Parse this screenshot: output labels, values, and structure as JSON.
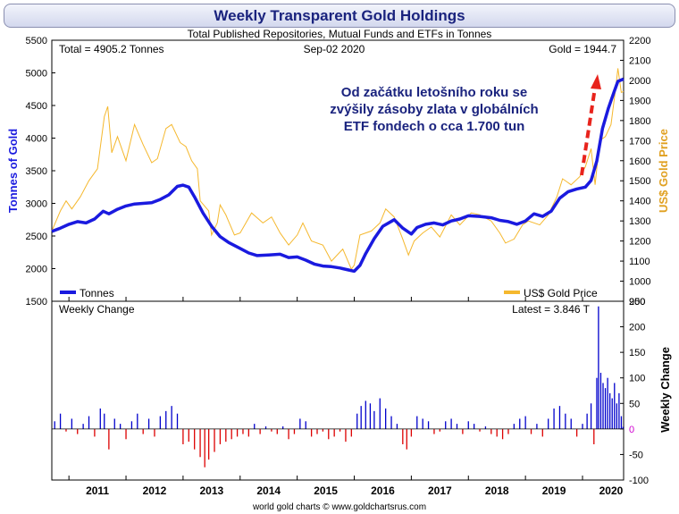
{
  "chart_data": {
    "type": "line",
    "title": "Weekly Transparent Gold Holdings",
    "subtitle": "Total Published Repositories, Mutual Funds and ETFs in Tonnes",
    "top_left_label": "Total = 4905.2 Tonnes",
    "top_center_label": "Sep-02  2020",
    "top_right_label": "Gold = 1944.7",
    "annotation": [
      "Od začátku letošního roku se",
      "zvýšily zásoby zlata v globálních",
      "ETF fondech o cca 1.700 tun"
    ],
    "left_axis_label": "Tonnes of Gold",
    "right_axis_label": "US$ Gold Price",
    "lower_axis_label": "Weekly Change",
    "lower_panel_title": "Weekly Change",
    "lower_panel_latest": "Latest = 3.846 T",
    "source": "world gold charts © www.goldchartsrus.com",
    "x_range": [
      2010.7,
      2020.72
    ],
    "x_tick_labels": [
      "2011",
      "2012",
      "2013",
      "2014",
      "2015",
      "2016",
      "2017",
      "2018",
      "2019",
      "2020"
    ],
    "left_ylim": [
      1500,
      5500
    ],
    "left_ticks": [
      "1500",
      "2000",
      "2500",
      "3000",
      "3500",
      "4000",
      "4500",
      "5000",
      "5500"
    ],
    "right_ylim": [
      900,
      2200
    ],
    "right_ticks": [
      "900",
      "1000",
      "1100",
      "1200",
      "1300",
      "1400",
      "1500",
      "1600",
      "1700",
      "1800",
      "1900",
      "2000",
      "2100",
      "2200"
    ],
    "lower_ylim": [
      -100,
      250
    ],
    "lower_ticks": [
      "-100",
      "-50",
      "0",
      "50",
      "100",
      "150",
      "200",
      "250"
    ],
    "legend": {
      "tonnes": "Tonnes",
      "gold": "US$ Gold Price"
    },
    "colors": {
      "tonnes": "#1a1adf",
      "gold": "#f5b82e",
      "positive": "#0000cc",
      "negative": "#dd0000",
      "arrow": "#e8231c",
      "title": "#1a237e",
      "left_axis": "#1a1adf",
      "right_axis": "#e0a020",
      "zero_label": "#d000d0"
    },
    "series": [
      {
        "name": "Tonnes",
        "axis": "left",
        "points": [
          [
            2010.7,
            2570
          ],
          [
            2010.85,
            2620
          ],
          [
            2011.0,
            2680
          ],
          [
            2011.15,
            2720
          ],
          [
            2011.3,
            2700
          ],
          [
            2011.45,
            2760
          ],
          [
            2011.6,
            2880
          ],
          [
            2011.7,
            2840
          ],
          [
            2011.85,
            2910
          ],
          [
            2012.0,
            2960
          ],
          [
            2012.15,
            2990
          ],
          [
            2012.3,
            3000
          ],
          [
            2012.45,
            3010
          ],
          [
            2012.6,
            3060
          ],
          [
            2012.75,
            3130
          ],
          [
            2012.9,
            3260
          ],
          [
            2013.0,
            3280
          ],
          [
            2013.1,
            3250
          ],
          [
            2013.2,
            3100
          ],
          [
            2013.35,
            2850
          ],
          [
            2013.5,
            2650
          ],
          [
            2013.65,
            2490
          ],
          [
            2013.8,
            2400
          ],
          [
            2014.0,
            2310
          ],
          [
            2014.15,
            2240
          ],
          [
            2014.3,
            2200
          ],
          [
            2014.5,
            2210
          ],
          [
            2014.7,
            2220
          ],
          [
            2014.85,
            2170
          ],
          [
            2015.0,
            2180
          ],
          [
            2015.15,
            2130
          ],
          [
            2015.3,
            2070
          ],
          [
            2015.45,
            2040
          ],
          [
            2015.6,
            2030
          ],
          [
            2015.75,
            2010
          ],
          [
            2015.9,
            1980
          ],
          [
            2016.0,
            1960
          ],
          [
            2016.1,
            2050
          ],
          [
            2016.2,
            2230
          ],
          [
            2016.35,
            2460
          ],
          [
            2016.5,
            2650
          ],
          [
            2016.7,
            2750
          ],
          [
            2016.85,
            2620
          ],
          [
            2017.0,
            2530
          ],
          [
            2017.1,
            2630
          ],
          [
            2017.25,
            2680
          ],
          [
            2017.4,
            2700
          ],
          [
            2017.55,
            2670
          ],
          [
            2017.7,
            2730
          ],
          [
            2017.85,
            2760
          ],
          [
            2018.0,
            2810
          ],
          [
            2018.2,
            2800
          ],
          [
            2018.4,
            2780
          ],
          [
            2018.55,
            2740
          ],
          [
            2018.7,
            2720
          ],
          [
            2018.85,
            2680
          ],
          [
            2019.0,
            2730
          ],
          [
            2019.15,
            2840
          ],
          [
            2019.3,
            2800
          ],
          [
            2019.45,
            2880
          ],
          [
            2019.6,
            3080
          ],
          [
            2019.75,
            3180
          ],
          [
            2019.9,
            3220
          ],
          [
            2020.05,
            3250
          ],
          [
            2020.15,
            3350
          ],
          [
            2020.25,
            3650
          ],
          [
            2020.35,
            4150
          ],
          [
            2020.45,
            4450
          ],
          [
            2020.55,
            4700
          ],
          [
            2020.62,
            4870
          ],
          [
            2020.72,
            4905
          ]
        ]
      },
      {
        "name": "US$ Gold Price",
        "axis": "right",
        "points": [
          [
            2010.7,
            1250
          ],
          [
            2010.85,
            1350
          ],
          [
            2010.95,
            1400
          ],
          [
            2011.05,
            1360
          ],
          [
            2011.2,
            1420
          ],
          [
            2011.35,
            1500
          ],
          [
            2011.5,
            1560
          ],
          [
            2011.62,
            1820
          ],
          [
            2011.68,
            1870
          ],
          [
            2011.75,
            1640
          ],
          [
            2011.85,
            1720
          ],
          [
            2012.0,
            1600
          ],
          [
            2012.1,
            1720
          ],
          [
            2012.15,
            1780
          ],
          [
            2012.3,
            1680
          ],
          [
            2012.45,
            1590
          ],
          [
            2012.55,
            1610
          ],
          [
            2012.7,
            1760
          ],
          [
            2012.8,
            1780
          ],
          [
            2012.95,
            1690
          ],
          [
            2013.05,
            1670
          ],
          [
            2013.15,
            1600
          ],
          [
            2013.25,
            1560
          ],
          [
            2013.3,
            1400
          ],
          [
            2013.45,
            1350
          ],
          [
            2013.5,
            1230
          ],
          [
            2013.6,
            1290
          ],
          [
            2013.65,
            1380
          ],
          [
            2013.75,
            1330
          ],
          [
            2013.9,
            1230
          ],
          [
            2014.0,
            1240
          ],
          [
            2014.2,
            1340
          ],
          [
            2014.4,
            1290
          ],
          [
            2014.55,
            1320
          ],
          [
            2014.7,
            1240
          ],
          [
            2014.85,
            1180
          ],
          [
            2015.0,
            1230
          ],
          [
            2015.1,
            1290
          ],
          [
            2015.25,
            1200
          ],
          [
            2015.45,
            1180
          ],
          [
            2015.6,
            1100
          ],
          [
            2015.8,
            1160
          ],
          [
            2015.95,
            1060
          ],
          [
            2016.0,
            1080
          ],
          [
            2016.1,
            1230
          ],
          [
            2016.3,
            1250
          ],
          [
            2016.45,
            1290
          ],
          [
            2016.55,
            1360
          ],
          [
            2016.7,
            1320
          ],
          [
            2016.85,
            1210
          ],
          [
            2016.95,
            1130
          ],
          [
            2017.05,
            1200
          ],
          [
            2017.2,
            1240
          ],
          [
            2017.35,
            1270
          ],
          [
            2017.5,
            1220
          ],
          [
            2017.7,
            1330
          ],
          [
            2017.85,
            1280
          ],
          [
            2018.05,
            1340
          ],
          [
            2018.2,
            1330
          ],
          [
            2018.4,
            1300
          ],
          [
            2018.55,
            1240
          ],
          [
            2018.65,
            1190
          ],
          [
            2018.8,
            1210
          ],
          [
            2018.95,
            1280
          ],
          [
            2019.05,
            1300
          ],
          [
            2019.25,
            1280
          ],
          [
            2019.4,
            1330
          ],
          [
            2019.55,
            1420
          ],
          [
            2019.65,
            1510
          ],
          [
            2019.8,
            1480
          ],
          [
            2019.95,
            1520
          ],
          [
            2020.05,
            1570
          ],
          [
            2020.15,
            1660
          ],
          [
            2020.22,
            1480
          ],
          [
            2020.3,
            1700
          ],
          [
            2020.4,
            1720
          ],
          [
            2020.5,
            1780
          ],
          [
            2020.58,
            1960
          ],
          [
            2020.62,
            2060
          ],
          [
            2020.68,
            1940
          ],
          [
            2020.72,
            1945
          ]
        ]
      }
    ],
    "weekly_change": [
      [
        2010.75,
        15
      ],
      [
        2010.85,
        30
      ],
      [
        2010.95,
        -5
      ],
      [
        2011.05,
        20
      ],
      [
        2011.15,
        -10
      ],
      [
        2011.25,
        10
      ],
      [
        2011.35,
        25
      ],
      [
        2011.45,
        -15
      ],
      [
        2011.55,
        40
      ],
      [
        2011.62,
        30
      ],
      [
        2011.7,
        -40
      ],
      [
        2011.8,
        20
      ],
      [
        2011.9,
        10
      ],
      [
        2012.0,
        -20
      ],
      [
        2012.1,
        15
      ],
      [
        2012.2,
        30
      ],
      [
        2012.3,
        -10
      ],
      [
        2012.4,
        20
      ],
      [
        2012.5,
        -15
      ],
      [
        2012.6,
        25
      ],
      [
        2012.7,
        35
      ],
      [
        2012.8,
        45
      ],
      [
        2012.9,
        30
      ],
      [
        2013.0,
        -30
      ],
      [
        2013.1,
        -25
      ],
      [
        2013.2,
        -40
      ],
      [
        2013.3,
        -55
      ],
      [
        2013.38,
        -75
      ],
      [
        2013.45,
        -60
      ],
      [
        2013.55,
        -45
      ],
      [
        2013.65,
        -30
      ],
      [
        2013.75,
        -25
      ],
      [
        2013.85,
        -20
      ],
      [
        2013.95,
        -15
      ],
      [
        2014.05,
        -10
      ],
      [
        2014.15,
        -15
      ],
      [
        2014.25,
        10
      ],
      [
        2014.35,
        -10
      ],
      [
        2014.45,
        5
      ],
      [
        2014.55,
        -5
      ],
      [
        2014.65,
        -10
      ],
      [
        2014.75,
        5
      ],
      [
        2014.85,
        -20
      ],
      [
        2014.95,
        -10
      ],
      [
        2015.05,
        20
      ],
      [
        2015.15,
        15
      ],
      [
        2015.25,
        -15
      ],
      [
        2015.35,
        -10
      ],
      [
        2015.45,
        -5
      ],
      [
        2015.55,
        -20
      ],
      [
        2015.65,
        -15
      ],
      [
        2015.75,
        -5
      ],
      [
        2015.85,
        -25
      ],
      [
        2015.95,
        -15
      ],
      [
        2016.05,
        30
      ],
      [
        2016.12,
        45
      ],
      [
        2016.2,
        55
      ],
      [
        2016.28,
        50
      ],
      [
        2016.35,
        35
      ],
      [
        2016.45,
        60
      ],
      [
        2016.55,
        40
      ],
      [
        2016.65,
        25
      ],
      [
        2016.75,
        10
      ],
      [
        2016.85,
        -30
      ],
      [
        2016.92,
        -40
      ],
      [
        2017.0,
        -15
      ],
      [
        2017.1,
        25
      ],
      [
        2017.2,
        20
      ],
      [
        2017.3,
        15
      ],
      [
        2017.4,
        -10
      ],
      [
        2017.5,
        -5
      ],
      [
        2017.6,
        15
      ],
      [
        2017.7,
        20
      ],
      [
        2017.8,
        10
      ],
      [
        2017.9,
        -10
      ],
      [
        2018.0,
        15
      ],
      [
        2018.1,
        10
      ],
      [
        2018.2,
        -5
      ],
      [
        2018.3,
        5
      ],
      [
        2018.4,
        -10
      ],
      [
        2018.5,
        -15
      ],
      [
        2018.6,
        -20
      ],
      [
        2018.7,
        -10
      ],
      [
        2018.8,
        10
      ],
      [
        2018.9,
        20
      ],
      [
        2019.0,
        25
      ],
      [
        2019.1,
        -10
      ],
      [
        2019.2,
        10
      ],
      [
        2019.3,
        -15
      ],
      [
        2019.4,
        20
      ],
      [
        2019.5,
        40
      ],
      [
        2019.6,
        45
      ],
      [
        2019.7,
        30
      ],
      [
        2019.8,
        20
      ],
      [
        2019.9,
        -15
      ],
      [
        2020.0,
        10
      ],
      [
        2020.08,
        30
      ],
      [
        2020.15,
        50
      ],
      [
        2020.2,
        -30
      ],
      [
        2020.25,
        100
      ],
      [
        2020.28,
        240
      ],
      [
        2020.32,
        110
      ],
      [
        2020.36,
        90
      ],
      [
        2020.4,
        80
      ],
      [
        2020.44,
        100
      ],
      [
        2020.48,
        70
      ],
      [
        2020.52,
        60
      ],
      [
        2020.56,
        90
      ],
      [
        2020.6,
        50
      ],
      [
        2020.64,
        70
      ],
      [
        2020.68,
        25
      ],
      [
        2020.71,
        4
      ]
    ]
  }
}
